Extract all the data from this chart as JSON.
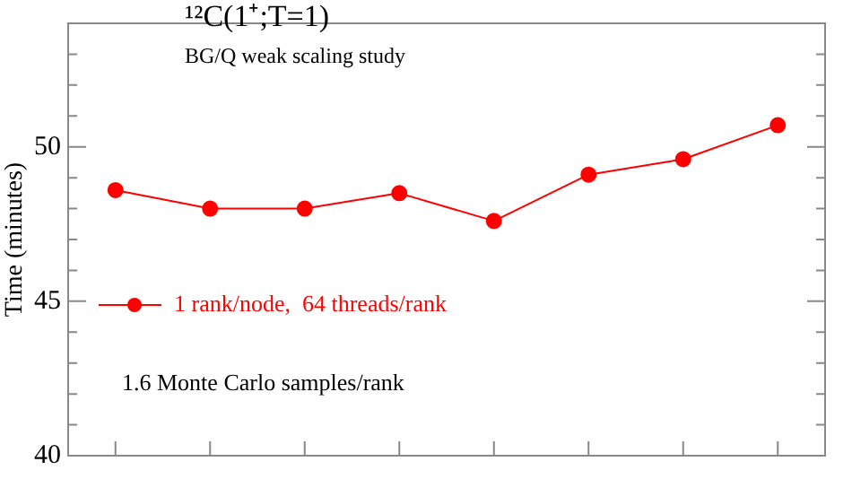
{
  "chart_data": {
    "type": "line",
    "ylabel": "Time (minutes)",
    "annotations": [
      "¹²C(1⁺;T=1)",
      "BG/Q weak scaling study",
      "1.6 Monte Carlo samples/rank"
    ],
    "categories": [
      null,
      null,
      null,
      null,
      null,
      null,
      null,
      null
    ],
    "series": [
      {
        "name": "1 rank/node,  64 threads/rank",
        "color": "#ff0000",
        "values": [
          48.6,
          48.0,
          48.0,
          48.5,
          47.6,
          49.1,
          49.6,
          50.7
        ]
      }
    ],
    "ylim": [
      40,
      54
    ],
    "yticks": [
      40,
      {
        "value": 41,
        "label": null
      },
      {
        "value": 42,
        "label": null
      },
      {
        "value": 43,
        "label": null
      },
      {
        "value": 44,
        "label": null
      },
      45,
      {
        "value": 46,
        "label": null
      },
      {
        "value": 47,
        "label": null
      },
      {
        "value": 48,
        "label": null
      },
      {
        "value": 49,
        "label": null
      },
      50,
      {
        "value": 51,
        "label": null
      },
      {
        "value": 52,
        "label": null
      },
      {
        "value": 53,
        "label": null
      },
      {
        "value": 54,
        "label": null
      }
    ],
    "tick_labels": "y",
    "grid": false,
    "legend": "left",
    "marker": "circle",
    "line_style": "solid"
  }
}
